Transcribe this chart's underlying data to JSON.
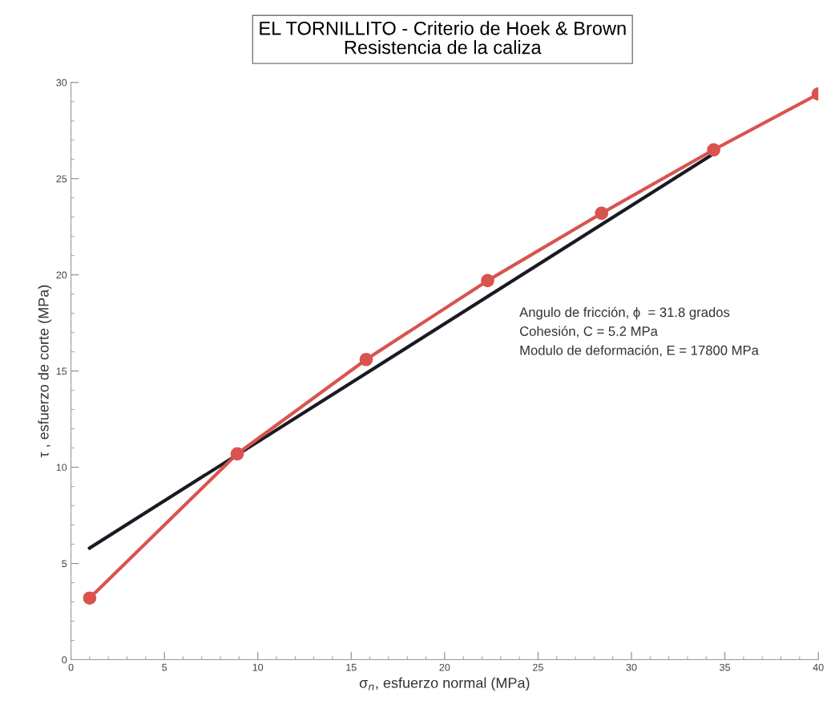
{
  "chart_data": {
    "type": "line",
    "title": "EL TORNILLITO - Criterio de Hoek & Brown\nResistencia de la caliza",
    "xlabel": "σ$_{n}$, esfuerzo normal (MPa)",
    "ylabel": "τ , esfuerzo de corte (MPa)",
    "series": [
      {
        "color": "#d9534f",
        "marker": "circle",
        "x": [
          1,
          8.9,
          15.8,
          22.3,
          28.4,
          34.4,
          40
        ],
        "values": [
          3.2,
          10.7,
          15.6,
          19.7,
          23.2,
          26.5,
          29.4
        ]
      },
      {
        "color": "#1a1a24",
        "marker": "none",
        "x": [
          1,
          34.4
        ],
        "values": [
          5.8,
          26.3
        ]
      }
    ],
    "xlim": [
      0,
      40
    ],
    "ylim": [
      0,
      30
    ],
    "xticks": [
      0,
      5,
      10,
      15,
      20,
      25,
      30,
      35,
      40
    ],
    "yticks": [
      0,
      5,
      10,
      15,
      20,
      25,
      30
    ],
    "grid": false,
    "legend": false,
    "annotations": [
      "Angulo de fricción, ϕ  = 31.8 grados",
      "Cohesión, C = 5.2 MPa",
      "Modulo de deformación, E = 17800 MPa"
    ]
  }
}
